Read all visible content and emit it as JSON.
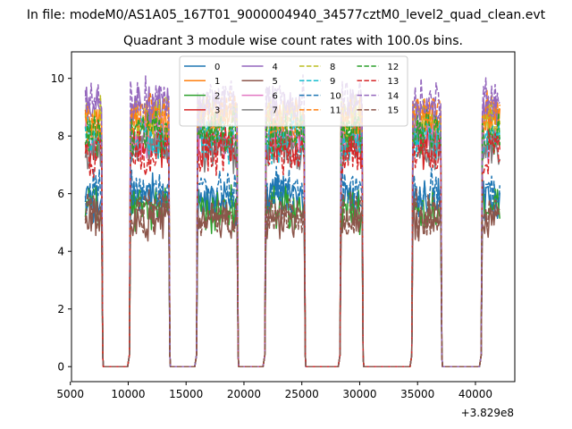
{
  "header": {
    "file_title": "In file: modeM0/AS1A05_167T01_9000004940_34577cztM0_level2_quad_clean.evt",
    "chart_title": "Quadrant 3 module wise count rates with 100.0s bins."
  },
  "chart_data": {
    "type": "line",
    "title": "Quadrant 3 module wise count rates with 100.0s bins.",
    "xlabel": "",
    "ylabel": "",
    "x_offset_label": "+3.829e8",
    "xlim": [
      5100,
      43400
    ],
    "ylim": [
      -0.52,
      10.92
    ],
    "xticks": [
      5000,
      10000,
      15000,
      20000,
      25000,
      30000,
      35000,
      40000
    ],
    "xtick_labels": [
      "5000",
      "10000",
      "15000",
      "20000",
      "25000",
      "30000",
      "35000",
      "40000"
    ],
    "yticks": [
      0,
      2,
      4,
      6,
      8,
      10
    ],
    "ytick_labels": [
      "0",
      "2",
      "4",
      "6",
      "8",
      "10"
    ],
    "legend_position": "top-center",
    "legend_columns": 4,
    "on_segments": [
      {
        "start": 6300,
        "end": 7700
      },
      {
        "start": 10100,
        "end": 13500
      },
      {
        "start": 15900,
        "end": 19400
      },
      {
        "start": 21800,
        "end": 25200
      },
      {
        "start": 28300,
        "end": 30200
      },
      {
        "start": 34500,
        "end": 37000
      },
      {
        "start": 40500,
        "end": 42100
      }
    ],
    "rise_start_level": 0.4,
    "series": [
      {
        "name": "0",
        "color": "#1f77b4",
        "dash": "solid",
        "level": 5.8
      },
      {
        "name": "1",
        "color": "#ff7f0e",
        "dash": "solid",
        "level": 8.5
      },
      {
        "name": "2",
        "color": "#2ca02c",
        "dash": "solid",
        "level": 5.5
      },
      {
        "name": "3",
        "color": "#d62728",
        "dash": "solid",
        "level": 7.7
      },
      {
        "name": "4",
        "color": "#9467bd",
        "dash": "solid",
        "level": 8.9
      },
      {
        "name": "5",
        "color": "#8c564b",
        "dash": "solid",
        "level": 5.1
      },
      {
        "name": "6",
        "color": "#e377c2",
        "dash": "solid",
        "level": 8.0
      },
      {
        "name": "7",
        "color": "#7f7f7f",
        "dash": "solid",
        "level": 7.6
      },
      {
        "name": "8",
        "color": "#bcbd22",
        "dash": "dashed",
        "level": 8.6
      },
      {
        "name": "9",
        "color": "#17becf",
        "dash": "dashed",
        "level": 7.9
      },
      {
        "name": "10",
        "color": "#1f77b4",
        "dash": "dashed",
        "level": 6.1
      },
      {
        "name": "11",
        "color": "#ff7f0e",
        "dash": "dashed",
        "level": 8.7
      },
      {
        "name": "12",
        "color": "#2ca02c",
        "dash": "dashed",
        "level": 8.1
      },
      {
        "name": "13",
        "color": "#d62728",
        "dash": "dashed",
        "level": 7.4
      },
      {
        "name": "14",
        "color": "#9467bd",
        "dash": "dashed",
        "level": 9.2
      },
      {
        "name": "15",
        "color": "#8c564b",
        "dash": "dashed",
        "level": 5.3
      }
    ]
  }
}
